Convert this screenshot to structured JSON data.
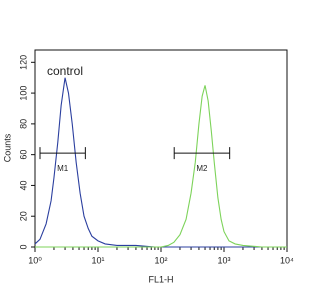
{
  "chart_data": {
    "type": "line",
    "xscale": "log",
    "x_label": "FL1-H",
    "y_label": "Counts",
    "annotation": "control",
    "xlim": [
      1,
      10000
    ],
    "ylim": [
      0,
      128
    ],
    "xticks": [
      {
        "value": 1,
        "label": "10⁰"
      },
      {
        "value": 10,
        "label": "10¹"
      },
      {
        "value": 100,
        "label": "10²"
      },
      {
        "value": 1000,
        "label": "10³"
      },
      {
        "value": 10000,
        "label": "10⁴"
      }
    ],
    "yticks": [
      0,
      20,
      40,
      60,
      80,
      100,
      120
    ],
    "x": [
      1,
      1.2,
      1.5,
      1.8,
      2,
      2.3,
      2.6,
      3,
      3.4,
      3.9,
      4.5,
      5.2,
      6,
      7,
      8,
      10,
      13,
      20,
      40,
      80,
      100,
      130,
      160,
      200,
      250,
      300,
      350,
      400,
      450,
      500,
      560,
      630,
      700,
      800,
      900,
      1000,
      1200,
      1500,
      2000,
      4000,
      10000
    ],
    "series": [
      {
        "color": "#2b3f9f",
        "values": [
          2,
          5,
          15,
          30,
          45,
          68,
          92,
          110,
          100,
          80,
          55,
          35,
          20,
          12,
          7,
          4,
          2,
          1,
          1,
          0,
          0,
          0,
          0,
          0,
          0,
          0,
          0,
          0,
          0,
          0,
          0,
          0,
          0,
          0,
          0,
          0,
          0,
          0,
          0,
          0,
          0
        ]
      },
      {
        "color": "#7dd35a",
        "values": [
          0,
          0,
          0,
          0,
          0,
          0,
          0,
          0,
          0,
          0,
          0,
          0,
          0,
          0,
          0,
          0,
          0,
          0,
          0,
          0,
          0,
          1,
          3,
          8,
          18,
          35,
          55,
          80,
          98,
          105,
          95,
          75,
          55,
          32,
          18,
          10,
          4,
          2,
          1,
          0,
          0
        ]
      }
    ],
    "markers": [
      {
        "label": "M1",
        "x": [
          1.2,
          6.3
        ],
        "y": 61
      },
      {
        "label": "M2",
        "x": [
          162,
          1230
        ],
        "y": 61
      }
    ]
  }
}
